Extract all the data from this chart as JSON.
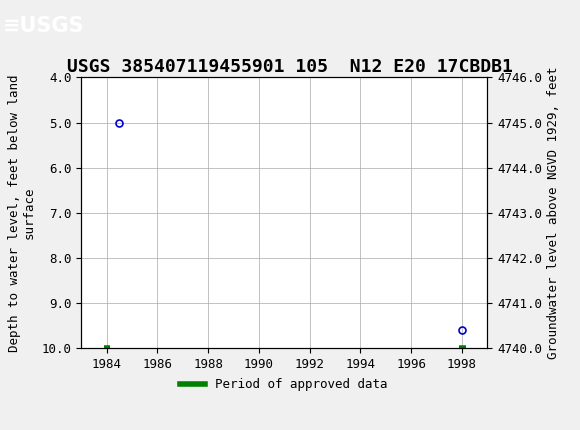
{
  "title": "USGS 385407119455901 105  N12 E20 17CBDB1",
  "ylabel_left": "Depth to water level, feet below land\nsurface",
  "ylabel_right": "Groundwater level above NGVD 1929, feet",
  "ylim_left": [
    10.0,
    4.0
  ],
  "ylim_right": [
    4740.0,
    4746.0
  ],
  "xlim": [
    1983,
    1999
  ],
  "yticks_left": [
    4.0,
    5.0,
    6.0,
    7.0,
    8.0,
    9.0,
    10.0
  ],
  "yticks_right": [
    4740.0,
    4741.0,
    4742.0,
    4743.0,
    4744.0,
    4745.0,
    4746.0
  ],
  "xticks": [
    1984,
    1986,
    1988,
    1990,
    1992,
    1994,
    1996,
    1998
  ],
  "data_points": [
    {
      "x": 1984.5,
      "y_depth": 5.0
    },
    {
      "x": 1998.0,
      "y_depth": 9.6
    }
  ],
  "green_segments": [
    {
      "x_start": 1983.9,
      "x_end": 1984.15
    },
    {
      "x_start": 1997.9,
      "x_end": 1998.15
    }
  ],
  "green_bar_y": 10.0,
  "point_color": "#0000cc",
  "point_marker": "o",
  "point_size": 5,
  "green_color": "#008000",
  "header_color": "#1a7040",
  "background_color": "#f0f0f0",
  "plot_bg_color": "#ffffff",
  "grid_color": "#aaaaaa",
  "title_fontsize": 13,
  "axis_label_fontsize": 9,
  "tick_fontsize": 9,
  "legend_label": "Period of approved data",
  "legend_color": "#008000"
}
